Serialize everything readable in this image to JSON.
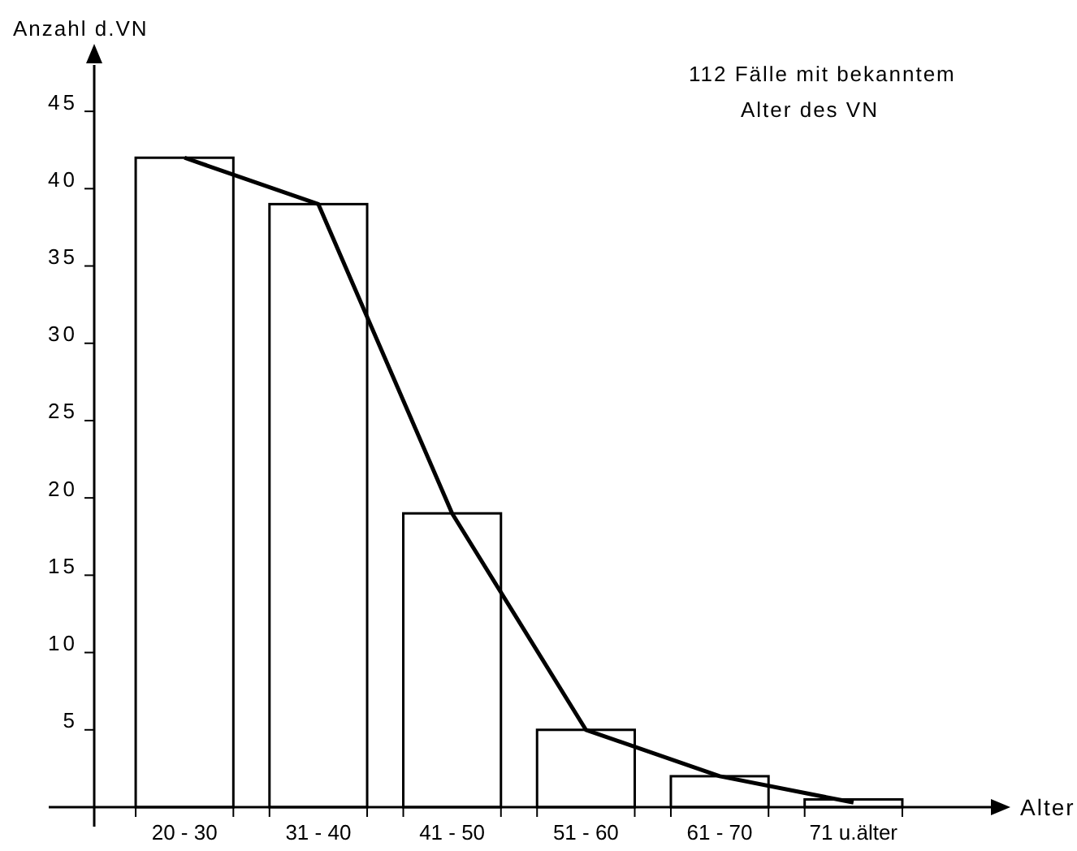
{
  "chart_data": {
    "type": "bar",
    "ylabel": "Anzahl d.VN",
    "xlabel": "Alter",
    "annotations": [
      "112 Fälle mit bekanntem Alter des VN"
    ],
    "categories": [
      "20 - 30",
      "31 - 40",
      "41 - 50",
      "51 - 60",
      "61 - 70",
      "71 u.älter"
    ],
    "series": [
      {
        "color": "#ffffff",
        "values": [
          42,
          39,
          19,
          5,
          2,
          0.5
        ]
      },
      {
        "type": "line",
        "color": "#000000",
        "values": [
          42,
          39,
          19,
          5,
          2,
          0.3
        ]
      }
    ],
    "ylim": [
      0,
      48
    ],
    "yticks": [
      5,
      10,
      15,
      20,
      25,
      30,
      35,
      40,
      45
    ],
    "grid": false
  }
}
